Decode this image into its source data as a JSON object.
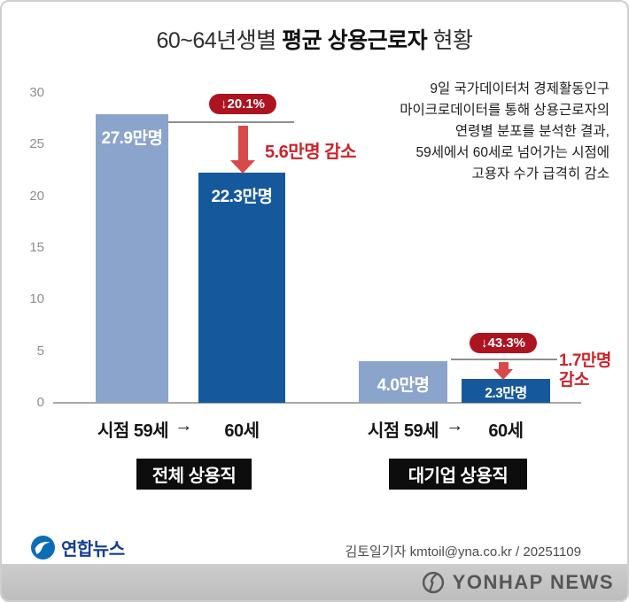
{
  "title": {
    "prefix": "60~64년생별 ",
    "emphasis": "평균 상용근로자",
    "suffix": " 현황"
  },
  "description": "9일 국가데이터처 경제활동인구\n마이크로데이터를 통해 상용근로자의\n연령별 분포를 분석한 결과,\n59세에서 60세로 넘어가는 시점에\n고용자 수가 급격히 감소",
  "chart_data": {
    "type": "bar",
    "unit": "만명",
    "ylim": [
      0,
      30
    ],
    "yticks": [
      0,
      5,
      10,
      15,
      20,
      25,
      30
    ],
    "grid": false,
    "legend": "none",
    "groups": [
      {
        "label": "전체 상용직",
        "axis": {
          "left": "시점 59세",
          "arrow": "→",
          "right": "60세"
        },
        "bars": [
          {
            "category": "59세",
            "value": 27.9,
            "label": "27.9만명",
            "color": "#8ba4cc"
          },
          {
            "category": "60세",
            "value": 22.3,
            "label": "22.3만명",
            "color": "#15599c"
          }
        ],
        "change_pct": "↓20.1%",
        "change_label": "5.6만명 감소"
      },
      {
        "label": "대기업 상용직",
        "axis": {
          "left": "시점 59세",
          "arrow": "→",
          "right": "60세"
        },
        "bars": [
          {
            "category": "59세",
            "value": 4.0,
            "label": "4.0만명",
            "color": "#8ba4cc"
          },
          {
            "category": "60세",
            "value": 2.3,
            "label": "2.3만명",
            "color": "#15599c"
          }
        ],
        "change_pct": "↓43.3%",
        "change_label": "1.7만명\n감소"
      }
    ]
  },
  "footer": {
    "agency": "연합뉴스",
    "credit": "김토일기자 kmtoil@yna.co.kr / 20251109",
    "watermark": "YONHAP NEWS"
  },
  "colors": {
    "bar_light": "#8ba4cc",
    "bar_dark": "#15599c",
    "accent_red": "#c9252b",
    "badge_red": "#ad1420"
  }
}
